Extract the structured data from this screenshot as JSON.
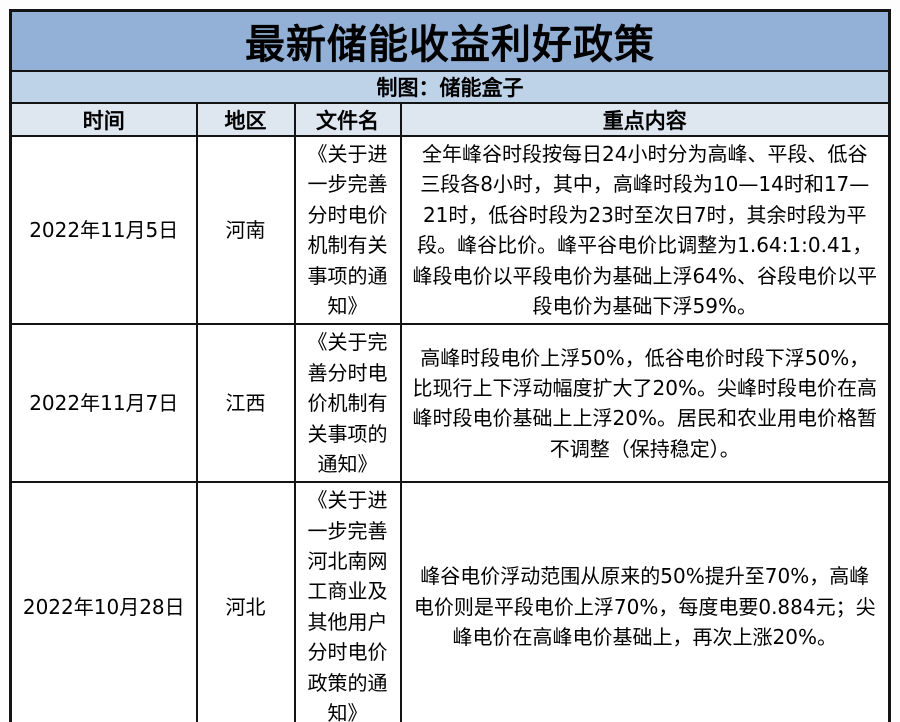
{
  "title": "最新储能收益利好政策",
  "credit": "制图：储能盒子",
  "colors": {
    "title_bg": "#93B1D7",
    "credit_bg": "#BED2E8",
    "header_bg": "#DEE7F0",
    "row_bg": "#FFFFFF",
    "border": "#141414",
    "text": "#000000"
  },
  "table": {
    "headers": [
      "时间",
      "地区",
      "文件名",
      "重点内容"
    ],
    "rows": [
      {
        "time": "2022年11月5日",
        "region": "河南",
        "file": "《关于进一步完善分时电价机制有关事项的通知》",
        "content": "全年峰谷时段按每日24小时分为高峰、平段、低谷三段各8小时，其中，高峰时段为10—14时和17—21时，低谷时段为23时至次日7时，其余时段为平段。峰谷比价。峰平谷电价比调整为1.64:1:0.41，峰段电价以平段电价为基础上浮64%、谷段电价以平段电价为基础下浮59%。"
      },
      {
        "time": "2022年11月7日",
        "region": "江西",
        "file": "《关于完善分时电价机制有关事项的通知》",
        "content": "高峰时段电价上浮50%，低谷电价时段下浮50%，比现行上下浮动幅度扩大了20%。尖峰时段电价在高峰时段电价基础上上浮20%。居民和农业用电价格暂不调整（保持稳定）。"
      },
      {
        "time": "2022年10月28日",
        "region": "河北",
        "file": "《关于进一步完善河北南网工商业及其他用户分时电价政策的通知》",
        "content": "峰谷电价浮动范围从原来的50%提升至70%，高峰电价则是平段电价上浮70%，每度电要0.884元；尖峰电价在高峰电价基础上，再次上涨20%。"
      }
    ]
  }
}
